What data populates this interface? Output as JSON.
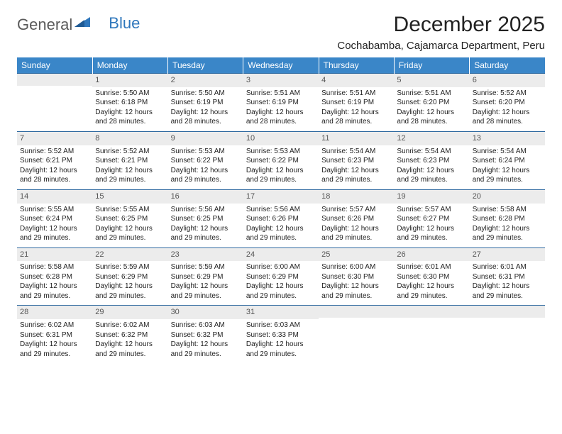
{
  "logo": {
    "part1": "General",
    "part2": "Blue"
  },
  "title": "December 2025",
  "subtitle": "Cochabamba, Cajamarca Department, Peru",
  "colors": {
    "header_bg": "#3a86c8",
    "header_text": "#ffffff",
    "row_border": "#2f6aa0",
    "daynum_bg": "#ececec",
    "text": "#222222",
    "logo_gray": "#5a5a5a",
    "logo_blue": "#2f77bc"
  },
  "day_headers": [
    "Sunday",
    "Monday",
    "Tuesday",
    "Wednesday",
    "Thursday",
    "Friday",
    "Saturday"
  ],
  "weeks": [
    [
      {
        "n": "",
        "sr": "",
        "ss": "",
        "dl1": "",
        "dl2": "",
        "empty": true
      },
      {
        "n": "1",
        "sr": "Sunrise: 5:50 AM",
        "ss": "Sunset: 6:18 PM",
        "dl1": "Daylight: 12 hours",
        "dl2": "and 28 minutes."
      },
      {
        "n": "2",
        "sr": "Sunrise: 5:50 AM",
        "ss": "Sunset: 6:19 PM",
        "dl1": "Daylight: 12 hours",
        "dl2": "and 28 minutes."
      },
      {
        "n": "3",
        "sr": "Sunrise: 5:51 AM",
        "ss": "Sunset: 6:19 PM",
        "dl1": "Daylight: 12 hours",
        "dl2": "and 28 minutes."
      },
      {
        "n": "4",
        "sr": "Sunrise: 5:51 AM",
        "ss": "Sunset: 6:19 PM",
        "dl1": "Daylight: 12 hours",
        "dl2": "and 28 minutes."
      },
      {
        "n": "5",
        "sr": "Sunrise: 5:51 AM",
        "ss": "Sunset: 6:20 PM",
        "dl1": "Daylight: 12 hours",
        "dl2": "and 28 minutes."
      },
      {
        "n": "6",
        "sr": "Sunrise: 5:52 AM",
        "ss": "Sunset: 6:20 PM",
        "dl1": "Daylight: 12 hours",
        "dl2": "and 28 minutes."
      }
    ],
    [
      {
        "n": "7",
        "sr": "Sunrise: 5:52 AM",
        "ss": "Sunset: 6:21 PM",
        "dl1": "Daylight: 12 hours",
        "dl2": "and 28 minutes."
      },
      {
        "n": "8",
        "sr": "Sunrise: 5:52 AM",
        "ss": "Sunset: 6:21 PM",
        "dl1": "Daylight: 12 hours",
        "dl2": "and 29 minutes."
      },
      {
        "n": "9",
        "sr": "Sunrise: 5:53 AM",
        "ss": "Sunset: 6:22 PM",
        "dl1": "Daylight: 12 hours",
        "dl2": "and 29 minutes."
      },
      {
        "n": "10",
        "sr": "Sunrise: 5:53 AM",
        "ss": "Sunset: 6:22 PM",
        "dl1": "Daylight: 12 hours",
        "dl2": "and 29 minutes."
      },
      {
        "n": "11",
        "sr": "Sunrise: 5:54 AM",
        "ss": "Sunset: 6:23 PM",
        "dl1": "Daylight: 12 hours",
        "dl2": "and 29 minutes."
      },
      {
        "n": "12",
        "sr": "Sunrise: 5:54 AM",
        "ss": "Sunset: 6:23 PM",
        "dl1": "Daylight: 12 hours",
        "dl2": "and 29 minutes."
      },
      {
        "n": "13",
        "sr": "Sunrise: 5:54 AM",
        "ss": "Sunset: 6:24 PM",
        "dl1": "Daylight: 12 hours",
        "dl2": "and 29 minutes."
      }
    ],
    [
      {
        "n": "14",
        "sr": "Sunrise: 5:55 AM",
        "ss": "Sunset: 6:24 PM",
        "dl1": "Daylight: 12 hours",
        "dl2": "and 29 minutes."
      },
      {
        "n": "15",
        "sr": "Sunrise: 5:55 AM",
        "ss": "Sunset: 6:25 PM",
        "dl1": "Daylight: 12 hours",
        "dl2": "and 29 minutes."
      },
      {
        "n": "16",
        "sr": "Sunrise: 5:56 AM",
        "ss": "Sunset: 6:25 PM",
        "dl1": "Daylight: 12 hours",
        "dl2": "and 29 minutes."
      },
      {
        "n": "17",
        "sr": "Sunrise: 5:56 AM",
        "ss": "Sunset: 6:26 PM",
        "dl1": "Daylight: 12 hours",
        "dl2": "and 29 minutes."
      },
      {
        "n": "18",
        "sr": "Sunrise: 5:57 AM",
        "ss": "Sunset: 6:26 PM",
        "dl1": "Daylight: 12 hours",
        "dl2": "and 29 minutes."
      },
      {
        "n": "19",
        "sr": "Sunrise: 5:57 AM",
        "ss": "Sunset: 6:27 PM",
        "dl1": "Daylight: 12 hours",
        "dl2": "and 29 minutes."
      },
      {
        "n": "20",
        "sr": "Sunrise: 5:58 AM",
        "ss": "Sunset: 6:28 PM",
        "dl1": "Daylight: 12 hours",
        "dl2": "and 29 minutes."
      }
    ],
    [
      {
        "n": "21",
        "sr": "Sunrise: 5:58 AM",
        "ss": "Sunset: 6:28 PM",
        "dl1": "Daylight: 12 hours",
        "dl2": "and 29 minutes."
      },
      {
        "n": "22",
        "sr": "Sunrise: 5:59 AM",
        "ss": "Sunset: 6:29 PM",
        "dl1": "Daylight: 12 hours",
        "dl2": "and 29 minutes."
      },
      {
        "n": "23",
        "sr": "Sunrise: 5:59 AM",
        "ss": "Sunset: 6:29 PM",
        "dl1": "Daylight: 12 hours",
        "dl2": "and 29 minutes."
      },
      {
        "n": "24",
        "sr": "Sunrise: 6:00 AM",
        "ss": "Sunset: 6:29 PM",
        "dl1": "Daylight: 12 hours",
        "dl2": "and 29 minutes."
      },
      {
        "n": "25",
        "sr": "Sunrise: 6:00 AM",
        "ss": "Sunset: 6:30 PM",
        "dl1": "Daylight: 12 hours",
        "dl2": "and 29 minutes."
      },
      {
        "n": "26",
        "sr": "Sunrise: 6:01 AM",
        "ss": "Sunset: 6:30 PM",
        "dl1": "Daylight: 12 hours",
        "dl2": "and 29 minutes."
      },
      {
        "n": "27",
        "sr": "Sunrise: 6:01 AM",
        "ss": "Sunset: 6:31 PM",
        "dl1": "Daylight: 12 hours",
        "dl2": "and 29 minutes."
      }
    ],
    [
      {
        "n": "28",
        "sr": "Sunrise: 6:02 AM",
        "ss": "Sunset: 6:31 PM",
        "dl1": "Daylight: 12 hours",
        "dl2": "and 29 minutes."
      },
      {
        "n": "29",
        "sr": "Sunrise: 6:02 AM",
        "ss": "Sunset: 6:32 PM",
        "dl1": "Daylight: 12 hours",
        "dl2": "and 29 minutes."
      },
      {
        "n": "30",
        "sr": "Sunrise: 6:03 AM",
        "ss": "Sunset: 6:32 PM",
        "dl1": "Daylight: 12 hours",
        "dl2": "and 29 minutes."
      },
      {
        "n": "31",
        "sr": "Sunrise: 6:03 AM",
        "ss": "Sunset: 6:33 PM",
        "dl1": "Daylight: 12 hours",
        "dl2": "and 29 minutes."
      },
      {
        "n": "",
        "sr": "",
        "ss": "",
        "dl1": "",
        "dl2": "",
        "empty": true
      },
      {
        "n": "",
        "sr": "",
        "ss": "",
        "dl1": "",
        "dl2": "",
        "empty": true
      },
      {
        "n": "",
        "sr": "",
        "ss": "",
        "dl1": "",
        "dl2": "",
        "empty": true
      }
    ]
  ]
}
